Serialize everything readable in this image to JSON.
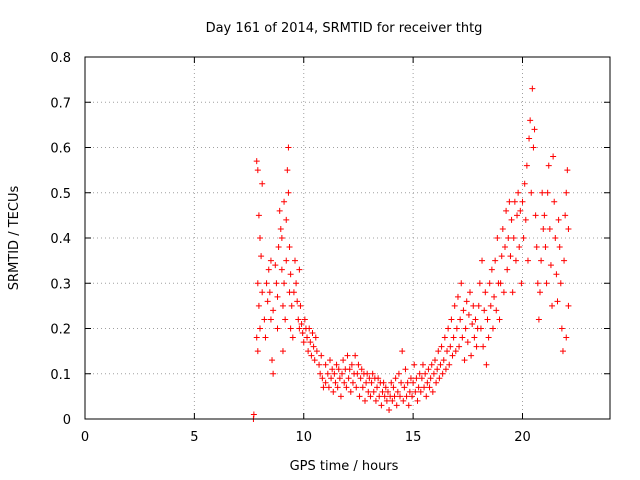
{
  "chart_data": {
    "type": "scatter",
    "title": "Day 161 of 2014, SRMTID for receiver thtg",
    "xlabel": "GPS time / hours",
    "ylabel": "SRMTID / TECUs",
    "xlim": [
      0,
      24
    ],
    "ylim": [
      0,
      0.8
    ],
    "xticks": [
      0,
      5,
      10,
      15,
      20
    ],
    "yticks": [
      0,
      0.1,
      0.2,
      0.3,
      0.4,
      0.5,
      0.6,
      0.7,
      0.8
    ],
    "xtick_labels": [
      "0",
      "5",
      "10",
      "15",
      "20"
    ],
    "ytick_labels": [
      "0",
      "0.1",
      "0.2",
      "0.3",
      "0.4",
      "0.5",
      "0.6",
      "0.7",
      "0.8"
    ],
    "grid": true,
    "marker": "+",
    "color": "#ff0000",
    "series": [
      {
        "name": "SRMTID",
        "points": [
          [
            7.7,
            0.0
          ],
          [
            7.72,
            0.01
          ],
          [
            7.85,
            0.57
          ],
          [
            7.9,
            0.55
          ],
          [
            7.95,
            0.45
          ],
          [
            8.0,
            0.4
          ],
          [
            7.9,
            0.3
          ],
          [
            7.95,
            0.25
          ],
          [
            8.0,
            0.2
          ],
          [
            7.85,
            0.18
          ],
          [
            7.9,
            0.15
          ],
          [
            8.05,
            0.36
          ],
          [
            8.1,
            0.52
          ],
          [
            8.1,
            0.28
          ],
          [
            8.2,
            0.22
          ],
          [
            8.25,
            0.18
          ],
          [
            8.3,
            0.3
          ],
          [
            8.35,
            0.26
          ],
          [
            8.4,
            0.33
          ],
          [
            8.45,
            0.28
          ],
          [
            8.5,
            0.35
          ],
          [
            8.5,
            0.22
          ],
          [
            8.55,
            0.13
          ],
          [
            8.6,
            0.24
          ],
          [
            8.6,
            0.1
          ],
          [
            8.7,
            0.34
          ],
          [
            8.75,
            0.3
          ],
          [
            8.8,
            0.27
          ],
          [
            8.8,
            0.2
          ],
          [
            8.85,
            0.38
          ],
          [
            8.9,
            0.46
          ],
          [
            8.95,
            0.42
          ],
          [
            9.0,
            0.4
          ],
          [
            9.0,
            0.33
          ],
          [
            9.05,
            0.25
          ],
          [
            9.05,
            0.15
          ],
          [
            9.1,
            0.48
          ],
          [
            9.1,
            0.3
          ],
          [
            9.15,
            0.22
          ],
          [
            9.2,
            0.44
          ],
          [
            9.2,
            0.35
          ],
          [
            9.25,
            0.55
          ],
          [
            9.3,
            0.6
          ],
          [
            9.3,
            0.5
          ],
          [
            9.35,
            0.38
          ],
          [
            9.35,
            0.28
          ],
          [
            9.4,
            0.32
          ],
          [
            9.4,
            0.2
          ],
          [
            9.45,
            0.25
          ],
          [
            9.5,
            0.18
          ],
          [
            9.55,
            0.28
          ],
          [
            9.6,
            0.35
          ],
          [
            9.65,
            0.3
          ],
          [
            9.7,
            0.26
          ],
          [
            9.75,
            0.22
          ],
          [
            9.8,
            0.33
          ],
          [
            9.8,
            0.2
          ],
          [
            9.85,
            0.25
          ],
          [
            9.9,
            0.21
          ],
          [
            9.95,
            0.19
          ],
          [
            10.0,
            0.17
          ],
          [
            10.05,
            0.22
          ],
          [
            10.1,
            0.2
          ],
          [
            10.15,
            0.18
          ],
          [
            10.2,
            0.15
          ],
          [
            10.25,
            0.2
          ],
          [
            10.3,
            0.17
          ],
          [
            10.35,
            0.14
          ],
          [
            10.4,
            0.19
          ],
          [
            10.45,
            0.16
          ],
          [
            10.5,
            0.13
          ],
          [
            10.55,
            0.18
          ],
          [
            10.6,
            0.15
          ],
          [
            10.7,
            0.12
          ],
          [
            10.75,
            0.1
          ],
          [
            10.8,
            0.14
          ],
          [
            10.85,
            0.09
          ],
          [
            10.9,
            0.07
          ],
          [
            11.0,
            0.12
          ],
          [
            11.0,
            0.08
          ],
          [
            11.1,
            0.1
          ],
          [
            11.15,
            0.07
          ],
          [
            11.2,
            0.13
          ],
          [
            11.25,
            0.09
          ],
          [
            11.3,
            0.11
          ],
          [
            11.35,
            0.06
          ],
          [
            11.4,
            0.1
          ],
          [
            11.45,
            0.08
          ],
          [
            11.5,
            0.12
          ],
          [
            11.55,
            0.07
          ],
          [
            11.6,
            0.11
          ],
          [
            11.65,
            0.09
          ],
          [
            11.7,
            0.05
          ],
          [
            11.75,
            0.1
          ],
          [
            11.8,
            0.13
          ],
          [
            11.85,
            0.08
          ],
          [
            11.9,
            0.11
          ],
          [
            11.95,
            0.07
          ],
          [
            12.0,
            0.14
          ],
          [
            12.05,
            0.09
          ],
          [
            12.1,
            0.11
          ],
          [
            12.15,
            0.06
          ],
          [
            12.2,
            0.12
          ],
          [
            12.25,
            0.08
          ],
          [
            12.3,
            0.1
          ],
          [
            12.35,
            0.14
          ],
          [
            12.4,
            0.07
          ],
          [
            12.45,
            0.1
          ],
          [
            12.5,
            0.12
          ],
          [
            12.55,
            0.05
          ],
          [
            12.6,
            0.09
          ],
          [
            12.65,
            0.11
          ],
          [
            12.7,
            0.07
          ],
          [
            12.75,
            0.1
          ],
          [
            12.8,
            0.04
          ],
          [
            12.85,
            0.08
          ],
          [
            12.9,
            0.1
          ],
          [
            12.95,
            0.06
          ],
          [
            13.0,
            0.09
          ],
          [
            13.05,
            0.05
          ],
          [
            13.1,
            0.08
          ],
          [
            13.15,
            0.1
          ],
          [
            13.2,
            0.06
          ],
          [
            13.25,
            0.09
          ],
          [
            13.3,
            0.04
          ],
          [
            13.35,
            0.07
          ],
          [
            13.4,
            0.09
          ],
          [
            13.45,
            0.05
          ],
          [
            13.5,
            0.08
          ],
          [
            13.55,
            0.03
          ],
          [
            13.6,
            0.06
          ],
          [
            13.65,
            0.08
          ],
          [
            13.7,
            0.05
          ],
          [
            13.75,
            0.07
          ],
          [
            13.8,
            0.04
          ],
          [
            13.85,
            0.06
          ],
          [
            13.9,
            0.02
          ],
          [
            13.95,
            0.05
          ],
          [
            14.0,
            0.08
          ],
          [
            14.05,
            0.04
          ],
          [
            14.1,
            0.07
          ],
          [
            14.15,
            0.05
          ],
          [
            14.2,
            0.09
          ],
          [
            14.25,
            0.03
          ],
          [
            14.3,
            0.06
          ],
          [
            14.35,
            0.1
          ],
          [
            14.4,
            0.05
          ],
          [
            14.45,
            0.08
          ],
          [
            14.5,
            0.15
          ],
          [
            14.55,
            0.04
          ],
          [
            14.6,
            0.07
          ],
          [
            14.65,
            0.11
          ],
          [
            14.7,
            0.05
          ],
          [
            14.75,
            0.08
          ],
          [
            14.8,
            0.03
          ],
          [
            14.85,
            0.06
          ],
          [
            14.9,
            0.09
          ],
          [
            14.95,
            0.05
          ],
          [
            15.0,
            0.08
          ],
          [
            15.05,
            0.12
          ],
          [
            15.1,
            0.06
          ],
          [
            15.15,
            0.09
          ],
          [
            15.2,
            0.04
          ],
          [
            15.25,
            0.07
          ],
          [
            15.3,
            0.1
          ],
          [
            15.35,
            0.06
          ],
          [
            15.4,
            0.09
          ],
          [
            15.45,
            0.12
          ],
          [
            15.5,
            0.07
          ],
          [
            15.55,
            0.1
          ],
          [
            15.6,
            0.05
          ],
          [
            15.65,
            0.08
          ],
          [
            15.7,
            0.11
          ],
          [
            15.75,
            0.07
          ],
          [
            15.8,
            0.09
          ],
          [
            15.85,
            0.12
          ],
          [
            15.9,
            0.06
          ],
          [
            15.95,
            0.1
          ],
          [
            16.0,
            0.13
          ],
          [
            16.05,
            0.08
          ],
          [
            16.1,
            0.11
          ],
          [
            16.15,
            0.15
          ],
          [
            16.2,
            0.09
          ],
          [
            16.25,
            0.12
          ],
          [
            16.3,
            0.16
          ],
          [
            16.35,
            0.1
          ],
          [
            16.4,
            0.13
          ],
          [
            16.45,
            0.18
          ],
          [
            16.5,
            0.11
          ],
          [
            16.55,
            0.15
          ],
          [
            16.6,
            0.2
          ],
          [
            16.65,
            0.12
          ],
          [
            16.7,
            0.16
          ],
          [
            16.75,
            0.22
          ],
          [
            16.8,
            0.14
          ],
          [
            16.85,
            0.18
          ],
          [
            16.9,
            0.25
          ],
          [
            16.95,
            0.15
          ],
          [
            17.0,
            0.2
          ],
          [
            17.05,
            0.27
          ],
          [
            17.1,
            0.16
          ],
          [
            17.15,
            0.22
          ],
          [
            17.2,
            0.3
          ],
          [
            17.25,
            0.18
          ],
          [
            17.3,
            0.24
          ],
          [
            17.35,
            0.13
          ],
          [
            17.4,
            0.2
          ],
          [
            17.45,
            0.26
          ],
          [
            17.5,
            0.17
          ],
          [
            17.55,
            0.23
          ],
          [
            17.6,
            0.28
          ],
          [
            17.65,
            0.14
          ],
          [
            17.7,
            0.21
          ],
          [
            17.75,
            0.25
          ],
          [
            17.8,
            0.18
          ],
          [
            17.85,
            0.22
          ],
          [
            17.9,
            0.16
          ],
          [
            17.95,
            0.2
          ],
          [
            18.0,
            0.25
          ],
          [
            18.05,
            0.3
          ],
          [
            18.1,
            0.2
          ],
          [
            18.15,
            0.35
          ],
          [
            18.2,
            0.16
          ],
          [
            18.25,
            0.24
          ],
          [
            18.3,
            0.28
          ],
          [
            18.35,
            0.12
          ],
          [
            18.4,
            0.22
          ],
          [
            18.45,
            0.18
          ],
          [
            18.5,
            0.3
          ],
          [
            18.55,
            0.25
          ],
          [
            18.6,
            0.33
          ],
          [
            18.65,
            0.2
          ],
          [
            18.7,
            0.27
          ],
          [
            18.75,
            0.35
          ],
          [
            18.8,
            0.24
          ],
          [
            18.85,
            0.4
          ],
          [
            18.9,
            0.3
          ],
          [
            18.95,
            0.22
          ],
          [
            19.0,
            0.3
          ],
          [
            19.05,
            0.36
          ],
          [
            19.1,
            0.42
          ],
          [
            19.15,
            0.28
          ],
          [
            19.2,
            0.38
          ],
          [
            19.25,
            0.46
          ],
          [
            19.3,
            0.33
          ],
          [
            19.35,
            0.4
          ],
          [
            19.4,
            0.48
          ],
          [
            19.45,
            0.36
          ],
          [
            19.5,
            0.44
          ],
          [
            19.55,
            0.28
          ],
          [
            19.6,
            0.4
          ],
          [
            19.65,
            0.48
          ],
          [
            19.7,
            0.35
          ],
          [
            19.75,
            0.45
          ],
          [
            19.8,
            0.5
          ],
          [
            19.85,
            0.38
          ],
          [
            19.9,
            0.46
          ],
          [
            19.95,
            0.3
          ],
          [
            20.0,
            0.48
          ],
          [
            20.05,
            0.4
          ],
          [
            20.1,
            0.52
          ],
          [
            20.15,
            0.44
          ],
          [
            20.2,
            0.56
          ],
          [
            20.25,
            0.35
          ],
          [
            20.3,
            0.62
          ],
          [
            20.35,
            0.66
          ],
          [
            20.4,
            0.5
          ],
          [
            20.45,
            0.73
          ],
          [
            20.5,
            0.6
          ],
          [
            20.55,
            0.64
          ],
          [
            20.6,
            0.45
          ],
          [
            20.65,
            0.38
          ],
          [
            20.7,
            0.3
          ],
          [
            20.75,
            0.22
          ],
          [
            20.8,
            0.28
          ],
          [
            20.85,
            0.35
          ],
          [
            20.9,
            0.5
          ],
          [
            20.95,
            0.42
          ],
          [
            21.0,
            0.45
          ],
          [
            21.05,
            0.38
          ],
          [
            21.1,
            0.3
          ],
          [
            21.15,
            0.5
          ],
          [
            21.2,
            0.56
          ],
          [
            21.25,
            0.42
          ],
          [
            21.3,
            0.34
          ],
          [
            21.35,
            0.25
          ],
          [
            21.4,
            0.58
          ],
          [
            21.45,
            0.48
          ],
          [
            21.5,
            0.4
          ],
          [
            21.55,
            0.32
          ],
          [
            21.6,
            0.26
          ],
          [
            21.65,
            0.44
          ],
          [
            21.7,
            0.38
          ],
          [
            21.75,
            0.3
          ],
          [
            21.8,
            0.2
          ],
          [
            21.85,
            0.15
          ],
          [
            21.9,
            0.35
          ],
          [
            21.95,
            0.45
          ],
          [
            22.0,
            0.5
          ],
          [
            22.05,
            0.55
          ],
          [
            22.1,
            0.42
          ],
          [
            22.1,
            0.25
          ],
          [
            22.0,
            0.18
          ]
        ]
      }
    ]
  }
}
